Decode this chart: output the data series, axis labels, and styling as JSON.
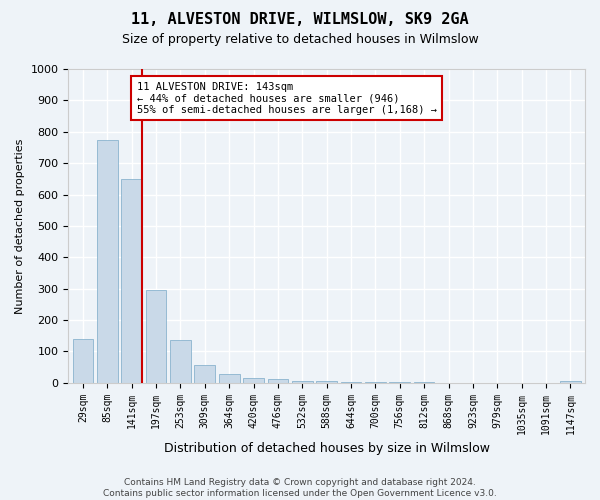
{
  "title": "11, ALVESTON DRIVE, WILMSLOW, SK9 2GA",
  "subtitle": "Size of property relative to detached houses in Wilmslow",
  "xlabel": "Distribution of detached houses by size in Wilmslow",
  "ylabel": "Number of detached properties",
  "bar_values": [
    140,
    775,
    650,
    295,
    135,
    57,
    27,
    16,
    13,
    7,
    5,
    4,
    3,
    2,
    2,
    1,
    1,
    0,
    1,
    0,
    5
  ],
  "bar_labels": [
    "29sqm",
    "85sqm",
    "141sqm",
    "197sqm",
    "253sqm",
    "309sqm",
    "364sqm",
    "420sqm",
    "476sqm",
    "532sqm",
    "588sqm",
    "644sqm",
    "700sqm",
    "756sqm",
    "812sqm",
    "868sqm",
    "923sqm",
    "979sqm",
    "1035sqm",
    "1091sqm",
    "1147sqm"
  ],
  "bar_color": "#c9d9e8",
  "bar_edge_color": "#7aaac8",
  "property_bar_index": 2,
  "annotation_box_text": "11 ALVESTON DRIVE: 143sqm\n← 44% of detached houses are smaller (946)\n55% of semi-detached houses are larger (1,168) →",
  "annotation_box_color": "#ffffff",
  "annotation_box_edge_color": "#cc0000",
  "ylim": [
    0,
    1000
  ],
  "yticks": [
    0,
    100,
    200,
    300,
    400,
    500,
    600,
    700,
    800,
    900,
    1000
  ],
  "footnote": "Contains HM Land Registry data © Crown copyright and database right 2024.\nContains public sector information licensed under the Open Government Licence v3.0.",
  "bg_color": "#eef3f8",
  "plot_bg_color": "#eef3f8",
  "grid_color": "#ffffff",
  "marker_line_color": "#cc0000"
}
